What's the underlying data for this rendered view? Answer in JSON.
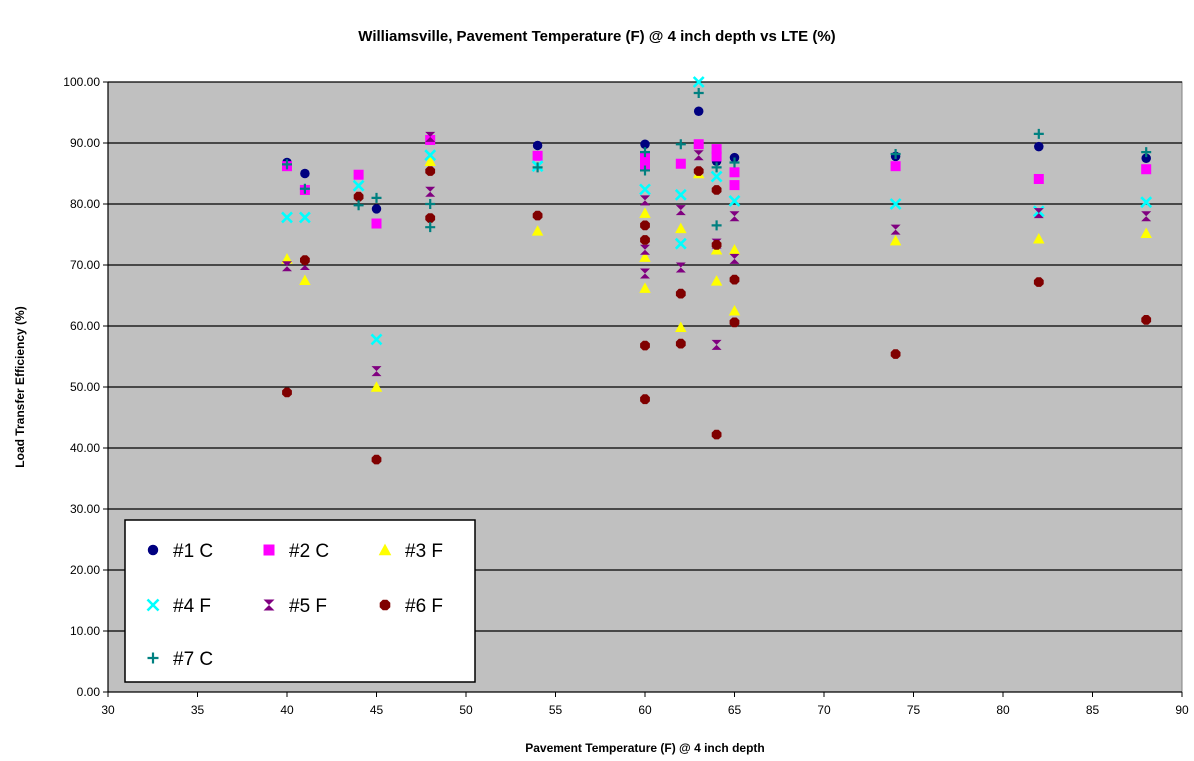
{
  "chart_data": {
    "type": "scatter",
    "title": "Williamsville, Pavement Temperature (F) @ 4 inch depth vs LTE (%)",
    "xlabel": "Pavement Temperature (F) @ 4 inch depth",
    "ylabel": "Load Transfer Efficiency (%)",
    "xlim": [
      30,
      90
    ],
    "ylim": [
      0,
      100
    ],
    "xticks": [
      "30",
      "35",
      "40",
      "45",
      "50",
      "55",
      "60",
      "65",
      "70",
      "75",
      "80",
      "85",
      "90"
    ],
    "yticks": [
      "0.00",
      "10.00",
      "20.00",
      "30.00",
      "40.00",
      "50.00",
      "60.00",
      "70.00",
      "80.00",
      "90.00",
      "100.00"
    ],
    "plot_background": "#c0c0c0",
    "grid": "horizontal",
    "legend_position": "bottom-left",
    "series": [
      {
        "name": "#1 C",
        "marker": "circle",
        "color": "#000080",
        "points": [
          [
            40,
            86.8
          ],
          [
            41,
            85
          ],
          [
            45,
            79.2
          ],
          [
            48,
            90.5
          ],
          [
            54,
            89.6
          ],
          [
            60,
            89.8
          ],
          [
            63,
            95.2
          ],
          [
            64,
            87
          ],
          [
            65,
            87.6
          ],
          [
            74,
            87.8
          ],
          [
            82,
            89.4
          ],
          [
            88,
            87.5
          ]
        ]
      },
      {
        "name": "#2 C",
        "marker": "square",
        "color": "#ff00ff",
        "points": [
          [
            40,
            86.2
          ],
          [
            41,
            82.3
          ],
          [
            44,
            84.8
          ],
          [
            45,
            76.8
          ],
          [
            48,
            90.5
          ],
          [
            54,
            87.9
          ],
          [
            60,
            87.7
          ],
          [
            60,
            86.3
          ],
          [
            62,
            86.6
          ],
          [
            63,
            89.8
          ],
          [
            64,
            89
          ],
          [
            64,
            87.8
          ],
          [
            65,
            85.2
          ],
          [
            65,
            83.1
          ],
          [
            74,
            86.2
          ],
          [
            82,
            84.1
          ],
          [
            88,
            85.7
          ]
        ]
      },
      {
        "name": "#3 F",
        "marker": "triangle",
        "color": "#ffff00",
        "points": [
          [
            40,
            71
          ],
          [
            41,
            67.5
          ],
          [
            45,
            50
          ],
          [
            48,
            87
          ],
          [
            54,
            75.6
          ],
          [
            60,
            78.5
          ],
          [
            60,
            71.3
          ],
          [
            60,
            66.2
          ],
          [
            62,
            76
          ],
          [
            62,
            59.8
          ],
          [
            63,
            85
          ],
          [
            64,
            72.5
          ],
          [
            64,
            67.4
          ],
          [
            65,
            72.5
          ],
          [
            65,
            62.5
          ],
          [
            74,
            74
          ],
          [
            82,
            74.3
          ],
          [
            88,
            75.2
          ]
        ]
      },
      {
        "name": "#4 F",
        "marker": "x",
        "color": "#00ffff",
        "points": [
          [
            40,
            77.8
          ],
          [
            41,
            77.8
          ],
          [
            44,
            83
          ],
          [
            45,
            57.8
          ],
          [
            48,
            88
          ],
          [
            54,
            86.2
          ],
          [
            60,
            82.4
          ],
          [
            62,
            73.5
          ],
          [
            62,
            81.5
          ],
          [
            63,
            100
          ],
          [
            64,
            84.5
          ],
          [
            65,
            80.5
          ],
          [
            74,
            80
          ],
          [
            82,
            78.8
          ],
          [
            88,
            80.3
          ]
        ]
      },
      {
        "name": "#5 F",
        "marker": "hourglass",
        "color": "#800080",
        "points": [
          [
            40,
            69.8
          ],
          [
            41,
            70
          ],
          [
            45,
            52.6
          ],
          [
            48,
            91
          ],
          [
            48,
            82
          ],
          [
            60,
            80.6
          ],
          [
            60,
            68.6
          ],
          [
            60,
            72.5
          ],
          [
            62,
            79
          ],
          [
            62,
            69.6
          ],
          [
            63,
            88
          ],
          [
            64,
            73.5
          ],
          [
            64,
            56.9
          ],
          [
            65,
            78
          ],
          [
            65,
            71
          ],
          [
            74,
            75.8
          ],
          [
            82,
            78.5
          ],
          [
            88,
            78
          ]
        ]
      },
      {
        "name": "#6 F",
        "marker": "octagon",
        "color": "#800000",
        "points": [
          [
            40,
            49.1
          ],
          [
            41,
            70.8
          ],
          [
            44,
            81.2
          ],
          [
            45,
            38.1
          ],
          [
            48,
            85.4
          ],
          [
            48,
            77.7
          ],
          [
            54,
            78.1
          ],
          [
            60,
            76.5
          ],
          [
            60,
            74.1
          ],
          [
            60,
            56.8
          ],
          [
            60,
            48
          ],
          [
            62,
            65.3
          ],
          [
            62,
            57.1
          ],
          [
            63,
            85.4
          ],
          [
            64,
            82.3
          ],
          [
            64,
            73.3
          ],
          [
            64,
            42.2
          ],
          [
            65,
            67.6
          ],
          [
            65,
            60.6
          ],
          [
            74,
            55.4
          ],
          [
            82,
            67.2
          ],
          [
            88,
            61
          ]
        ]
      },
      {
        "name": "#7 C",
        "marker": "plus",
        "color": "#008080",
        "points": [
          [
            40,
            86.5
          ],
          [
            41,
            82.5
          ],
          [
            44,
            79.8
          ],
          [
            45,
            81
          ],
          [
            48,
            80
          ],
          [
            48,
            76.2
          ],
          [
            54,
            86
          ],
          [
            60,
            85.5
          ],
          [
            60,
            88.5
          ],
          [
            62,
            89.8
          ],
          [
            63,
            98.2
          ],
          [
            64,
            86
          ],
          [
            64,
            76.5
          ],
          [
            65,
            86.8
          ],
          [
            74,
            88.2
          ],
          [
            82,
            91.5
          ],
          [
            88,
            88.5
          ]
        ]
      }
    ]
  }
}
